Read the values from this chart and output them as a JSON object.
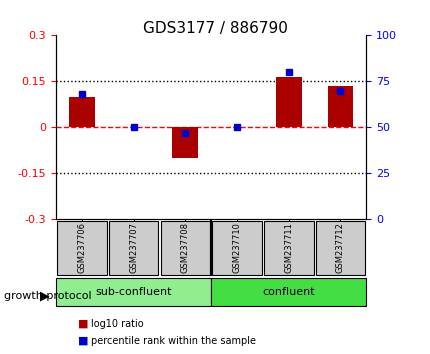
{
  "title": "GDS3177 / 886790",
  "samples": [
    "GSM237706",
    "GSM237707",
    "GSM237708",
    "GSM237710",
    "GSM237711",
    "GSM237712"
  ],
  "log10_ratio": [
    0.1,
    0.0,
    -0.1,
    0.0,
    0.165,
    0.135
  ],
  "percentile_rank": [
    68,
    50,
    47,
    50,
    80,
    70
  ],
  "groups": [
    {
      "label": "sub-confluent",
      "color": "#90EE90"
    },
    {
      "label": "confluent",
      "color": "#44DD44"
    }
  ],
  "group_label": "growth protocol",
  "bar_color": "#AA0000",
  "dot_color": "#0000CC",
  "ylim_left": [
    -0.3,
    0.3
  ],
  "ylim_right": [
    0,
    100
  ],
  "yticks_left": [
    -0.3,
    -0.15,
    0.0,
    0.15,
    0.3
  ],
  "yticks_right": [
    0,
    25,
    50,
    75,
    100
  ],
  "background_color": "#ffffff",
  "plot_bg": "#ffffff",
  "legend_items": [
    {
      "label": "log10 ratio",
      "color": "#AA0000"
    },
    {
      "label": "percentile rank within the sample",
      "color": "#0000CC"
    }
  ]
}
